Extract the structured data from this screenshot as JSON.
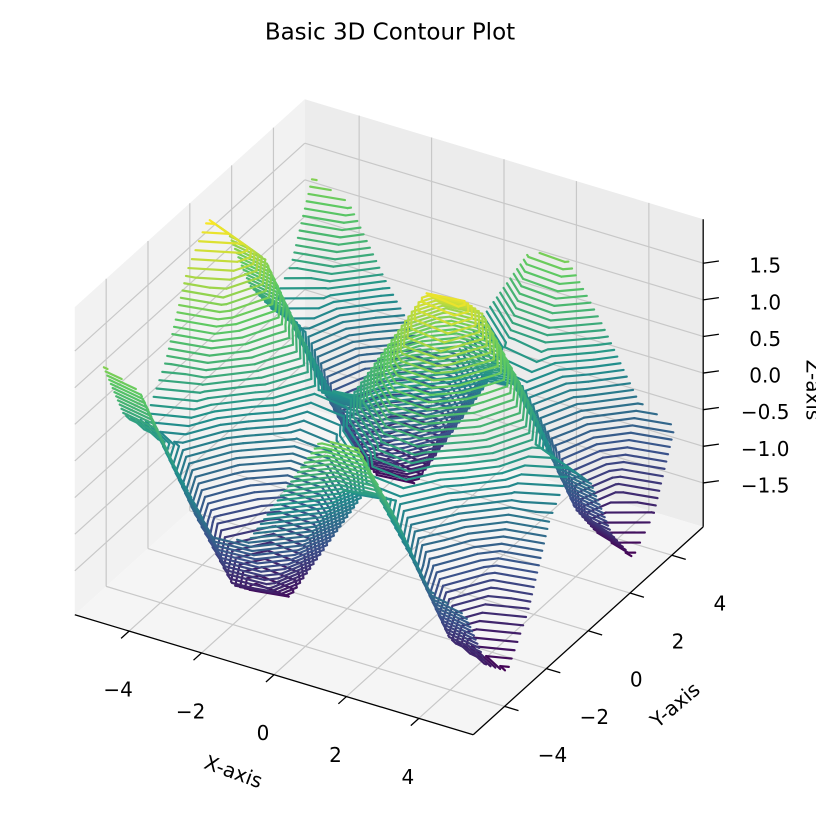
{
  "chart_data": {
    "type": "contour3d",
    "title": "Basic 3D Contour Plot",
    "xlabel": "X-axis",
    "ylabel": "Y-axis",
    "zlabel": "Z-axis",
    "colormap": "viridis",
    "grid": true,
    "x": [
      -5,
      -4,
      -3,
      -2,
      -1,
      0,
      1,
      2,
      3,
      4,
      5
    ],
    "y": [
      -5,
      -4,
      -3,
      -2,
      -1,
      0,
      1,
      2,
      3,
      4,
      5
    ],
    "z": [
      [
        1.24,
        1.04,
        0.14,
        -0.63,
        -0.56,
        0.28,
        1.12,
        1.19,
        0.42,
        -0.48,
        -0.68
      ],
      [
        0.31,
        0.11,
        -0.79,
        -1.56,
        -1.49,
        -0.65,
        0.19,
        0.26,
        -0.51,
        -1.41,
        -1.61
      ],
      [
        -0.03,
        -0.23,
        -1.13,
        -1.9,
        -1.83,
        -0.99,
        -0.15,
        -0.08,
        -0.85,
        -1.75,
        -1.95
      ],
      [
        0.54,
        0.34,
        -0.56,
        -1.33,
        -1.26,
        -0.42,
        0.42,
        0.49,
        -0.28,
        -1.18,
        -1.38
      ],
      [
        1.5,
        1.3,
        0.4,
        -0.37,
        -0.3,
        0.54,
        1.38,
        1.45,
        0.68,
        -0.22,
        -0.42
      ],
      [
        1.96,
        1.76,
        0.86,
        0.09,
        0.16,
        1.0,
        1.84,
        1.91,
        1.14,
        0.24,
        0.04
      ],
      [
        1.5,
        1.3,
        0.4,
        -0.37,
        -0.3,
        0.54,
        1.38,
        1.45,
        0.68,
        -0.22,
        -0.42
      ],
      [
        0.54,
        0.34,
        -0.56,
        -1.33,
        -1.26,
        -0.42,
        0.42,
        0.49,
        -0.28,
        -1.18,
        -1.38
      ],
      [
        -0.03,
        -0.23,
        -1.13,
        -1.9,
        -1.83,
        -0.99,
        -0.15,
        -0.08,
        -0.85,
        -1.75,
        -1.95
      ],
      [
        0.31,
        0.11,
        -0.79,
        -1.56,
        -1.49,
        -0.65,
        0.19,
        0.26,
        -0.51,
        -1.41,
        -1.61
      ],
      [
        1.24,
        1.04,
        0.14,
        -0.63,
        -0.56,
        0.28,
        1.12,
        1.19,
        0.42,
        -0.48,
        -0.68
      ]
    ],
    "xlim": [
      -5.5,
      5.5
    ],
    "ylim": [
      -5.5,
      5.5
    ],
    "zlim": [
      -2.1,
      2.1
    ],
    "xticks": [
      {
        "value": -4,
        "label": "−4"
      },
      {
        "value": -2,
        "label": "−2"
      },
      0,
      2,
      4
    ],
    "yticks": [
      {
        "value": -4,
        "label": "−4"
      },
      {
        "value": -2,
        "label": "−2"
      },
      0,
      2,
      4
    ],
    "zticks": [
      {
        "value": -1.5,
        "label": "−1.5"
      },
      {
        "value": -1.0,
        "label": "−1.0"
      },
      {
        "value": -0.5,
        "label": "−0.5"
      },
      {
        "value": 0,
        "label": "0.0"
      },
      0.5,
      {
        "value": 1.0,
        "label": "1.0"
      },
      1.5
    ]
  }
}
